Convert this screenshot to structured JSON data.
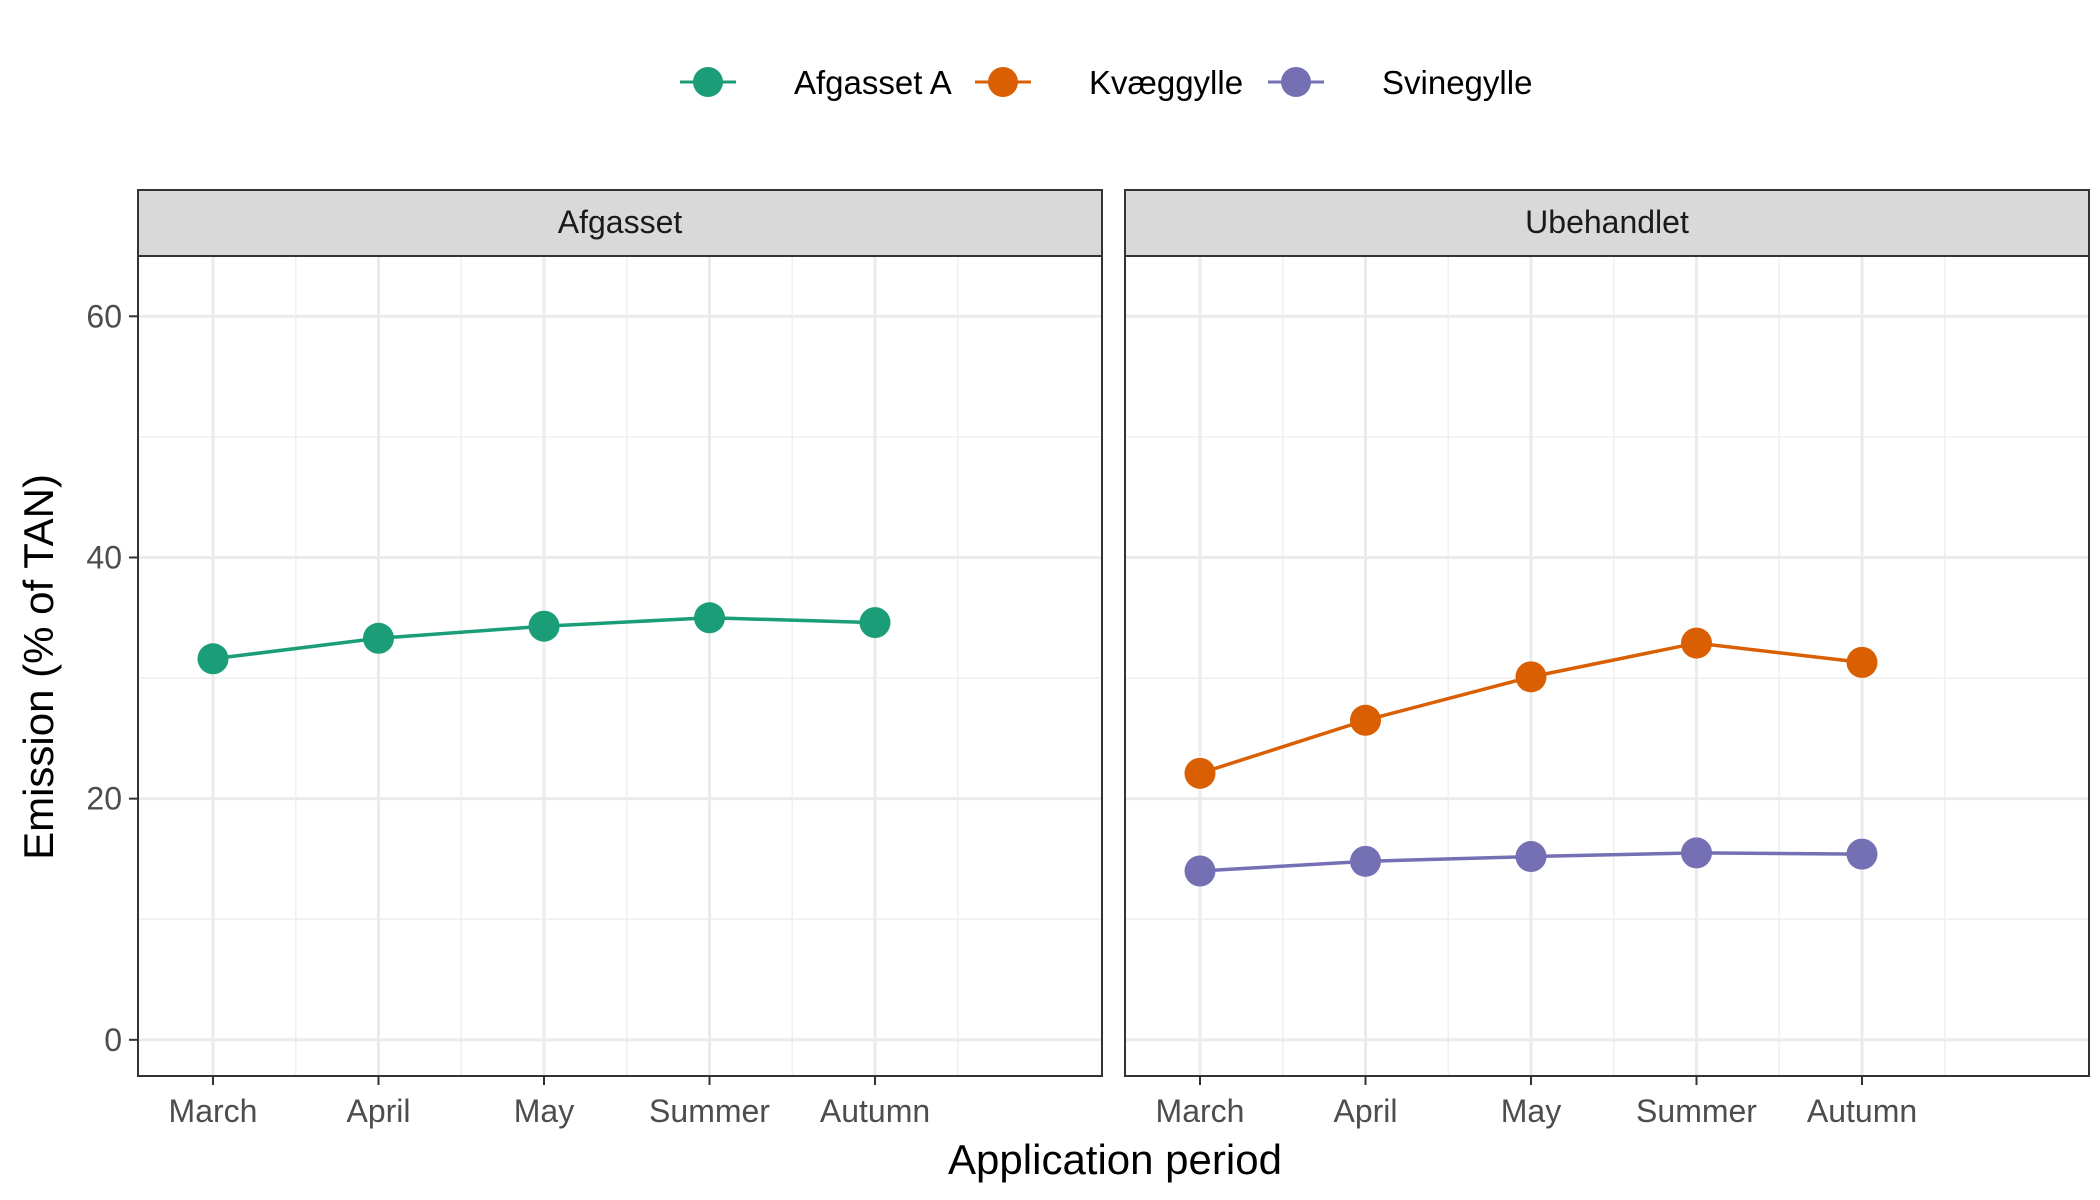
{
  "chart_data": {
    "type": "line",
    "title": "",
    "xlabel": "Application period",
    "ylabel": "Emission (% of TAN)",
    "categories": [
      "March",
      "April",
      "May",
      "Summer",
      "Autumn"
    ],
    "yticks": [
      0,
      20,
      40,
      60
    ],
    "ylim": [
      -3,
      65
    ],
    "grid": true,
    "legend_position": "top",
    "legend": [
      {
        "name": "Afgasset A",
        "color": "#1b9e77"
      },
      {
        "name": "Kvæggylle",
        "color": "#d95f02"
      },
      {
        "name": "Svinegylle",
        "color": "#7570b3"
      }
    ],
    "panels": [
      {
        "name": "Afgasset",
        "series": [
          {
            "name": "Afgasset A",
            "color": "#1b9e77",
            "values": [
              31.6,
              33.3,
              34.3,
              35.0,
              34.6
            ]
          }
        ]
      },
      {
        "name": "Ubehandlet",
        "series": [
          {
            "name": "Kvæggylle",
            "color": "#d95f02",
            "values": [
              22.1,
              26.5,
              30.1,
              32.9,
              31.3
            ]
          },
          {
            "name": "Svinegylle",
            "color": "#7570b3",
            "values": [
              14.0,
              14.8,
              15.2,
              15.5,
              15.4
            ]
          }
        ]
      }
    ]
  }
}
